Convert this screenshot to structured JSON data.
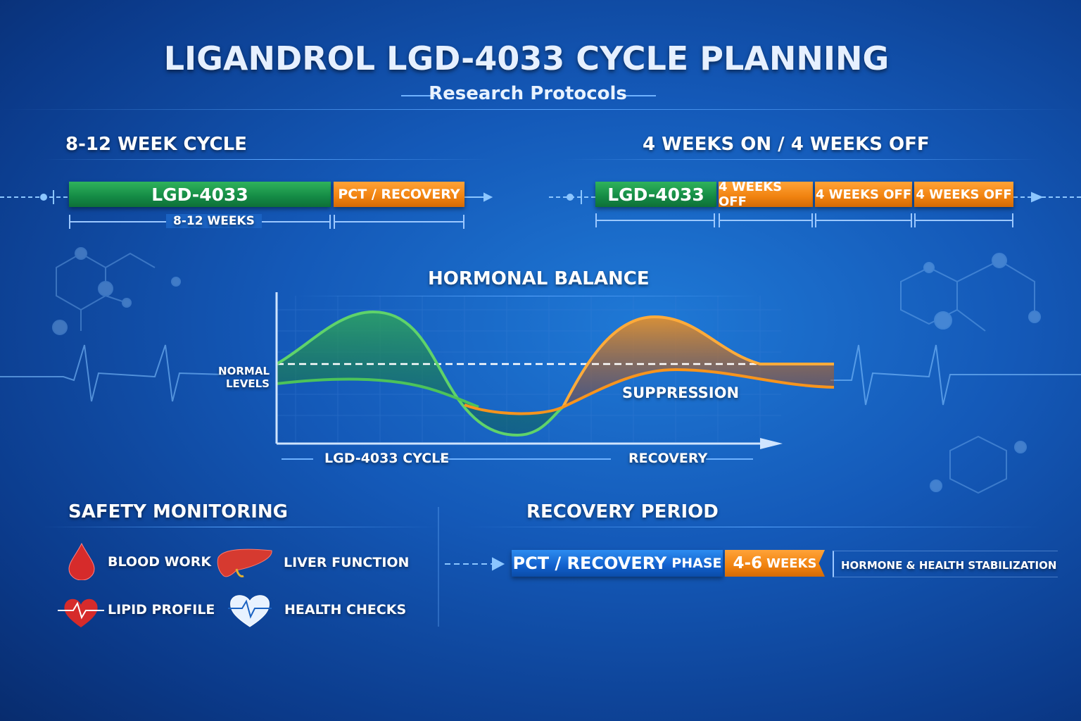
{
  "title": "LIGANDROL LGD-4033 CYCLE PLANNING",
  "subtitle": "Research Protocols",
  "cycle_left": {
    "heading": "8-12 WEEK CYCLE",
    "on_label": "LGD-4033",
    "off_label": "PCT / RECOVERY",
    "duration_label": "8-12 WEEKS"
  },
  "cycle_right": {
    "heading": "4 WEEKS ON / 4 WEEKS OFF",
    "on_label": "LGD-4033",
    "off_labels": [
      "4 WEEKS OFF",
      "4 WEEKS OFF",
      "4 WEEKS OFF"
    ]
  },
  "hormonal_chart": {
    "title": "HORMONAL BALANCE",
    "reference_label": "NORMAL LEVELS",
    "annotation": "SUPPRESSION",
    "phase_labels": [
      "LGD-4033 CYCLE",
      "RECOVERY"
    ],
    "colors": {
      "cycle": "#4cc35a",
      "recovery": "#f7941d"
    }
  },
  "safety": {
    "heading": "SAFETY MONITORING",
    "items": [
      {
        "label": "BLOOD WORK",
        "icon": "blood-drop-icon"
      },
      {
        "label": "LIVER FUNCTION",
        "icon": "liver-icon"
      },
      {
        "label": "LIPID PROFILE",
        "icon": "heart-pulse-icon"
      },
      {
        "label": "HEALTH CHECKS",
        "icon": "heart-outline-pulse-icon"
      }
    ]
  },
  "recovery": {
    "heading": "RECOVERY PERIOD",
    "phase_main": "PCT / RECOVERY",
    "phase_suffix": "PHASE",
    "weeks_num": "4-6",
    "weeks_unit": "WEEKS",
    "description": "HORMONE & HEALTH STABILIZATION"
  }
}
